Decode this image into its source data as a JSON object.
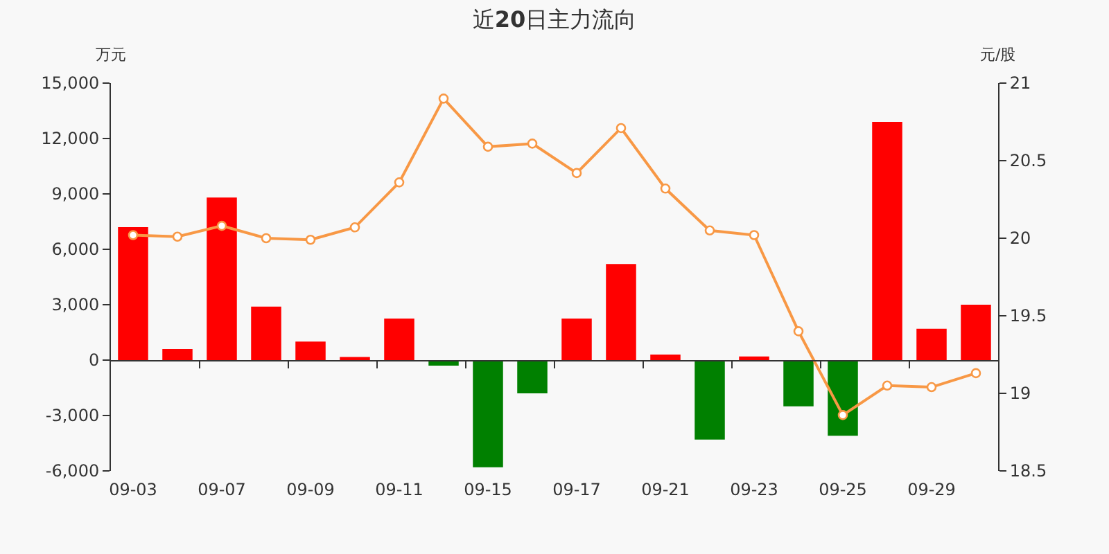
{
  "chart_data": {
    "type": "bar",
    "title": "近20日主力流向",
    "ylabel": "万元",
    "y2label": "元/股",
    "categories": [
      "09-03",
      null,
      "09-07",
      null,
      "09-09",
      null,
      "09-11",
      null,
      "09-15",
      null,
      "09-17",
      null,
      "09-21",
      null,
      "09-23",
      null,
      "09-25",
      null,
      "09-29",
      null
    ],
    "series": [
      {
        "colors": [
          "#ff0000",
          "#ff0000",
          "#ff0000",
          "#ff0000",
          "#ff0000",
          "#ff0000",
          "#ff0000",
          "#008000",
          "#008000",
          "#008000",
          "#ff0000",
          "#ff0000",
          "#ff0000",
          "#008000",
          "#ff0000",
          "#008000",
          "#008000",
          "#ff0000",
          "#ff0000",
          "#ff0000"
        ],
        "values": [
          7200,
          600,
          8800,
          2900,
          1000,
          170,
          2250,
          -300,
          -5800,
          -1800,
          2250,
          5200,
          300,
          -4300,
          200,
          -2500,
          -4100,
          12900,
          1700,
          3000
        ]
      },
      {
        "type": "line",
        "axis": "y2",
        "color": "#f89845",
        "values": [
          20.02,
          20.01,
          20.08,
          20.0,
          19.99,
          20.07,
          20.36,
          20.9,
          20.59,
          20.61,
          20.42,
          20.71,
          20.32,
          20.05,
          20.02,
          19.4,
          18.86,
          19.05,
          19.04,
          19.13
        ]
      }
    ],
    "ylim": [
      -6000,
      15000
    ],
    "yticks": [
      {
        "value": -6000,
        "label": "-6,000"
      },
      {
        "value": -3000,
        "label": "-3,000"
      },
      0,
      {
        "value": 3000,
        "label": "3,000"
      },
      {
        "value": 6000,
        "label": "6,000"
      },
      {
        "value": 9000,
        "label": "9,000"
      },
      {
        "value": 12000,
        "label": "12,000"
      },
      {
        "value": 15000,
        "label": "15,000"
      }
    ],
    "y2lim": [
      18.5,
      21
    ],
    "y2ticks": [
      18.5,
      19,
      19.5,
      20,
      20.5,
      21
    ],
    "marker": "circle"
  }
}
